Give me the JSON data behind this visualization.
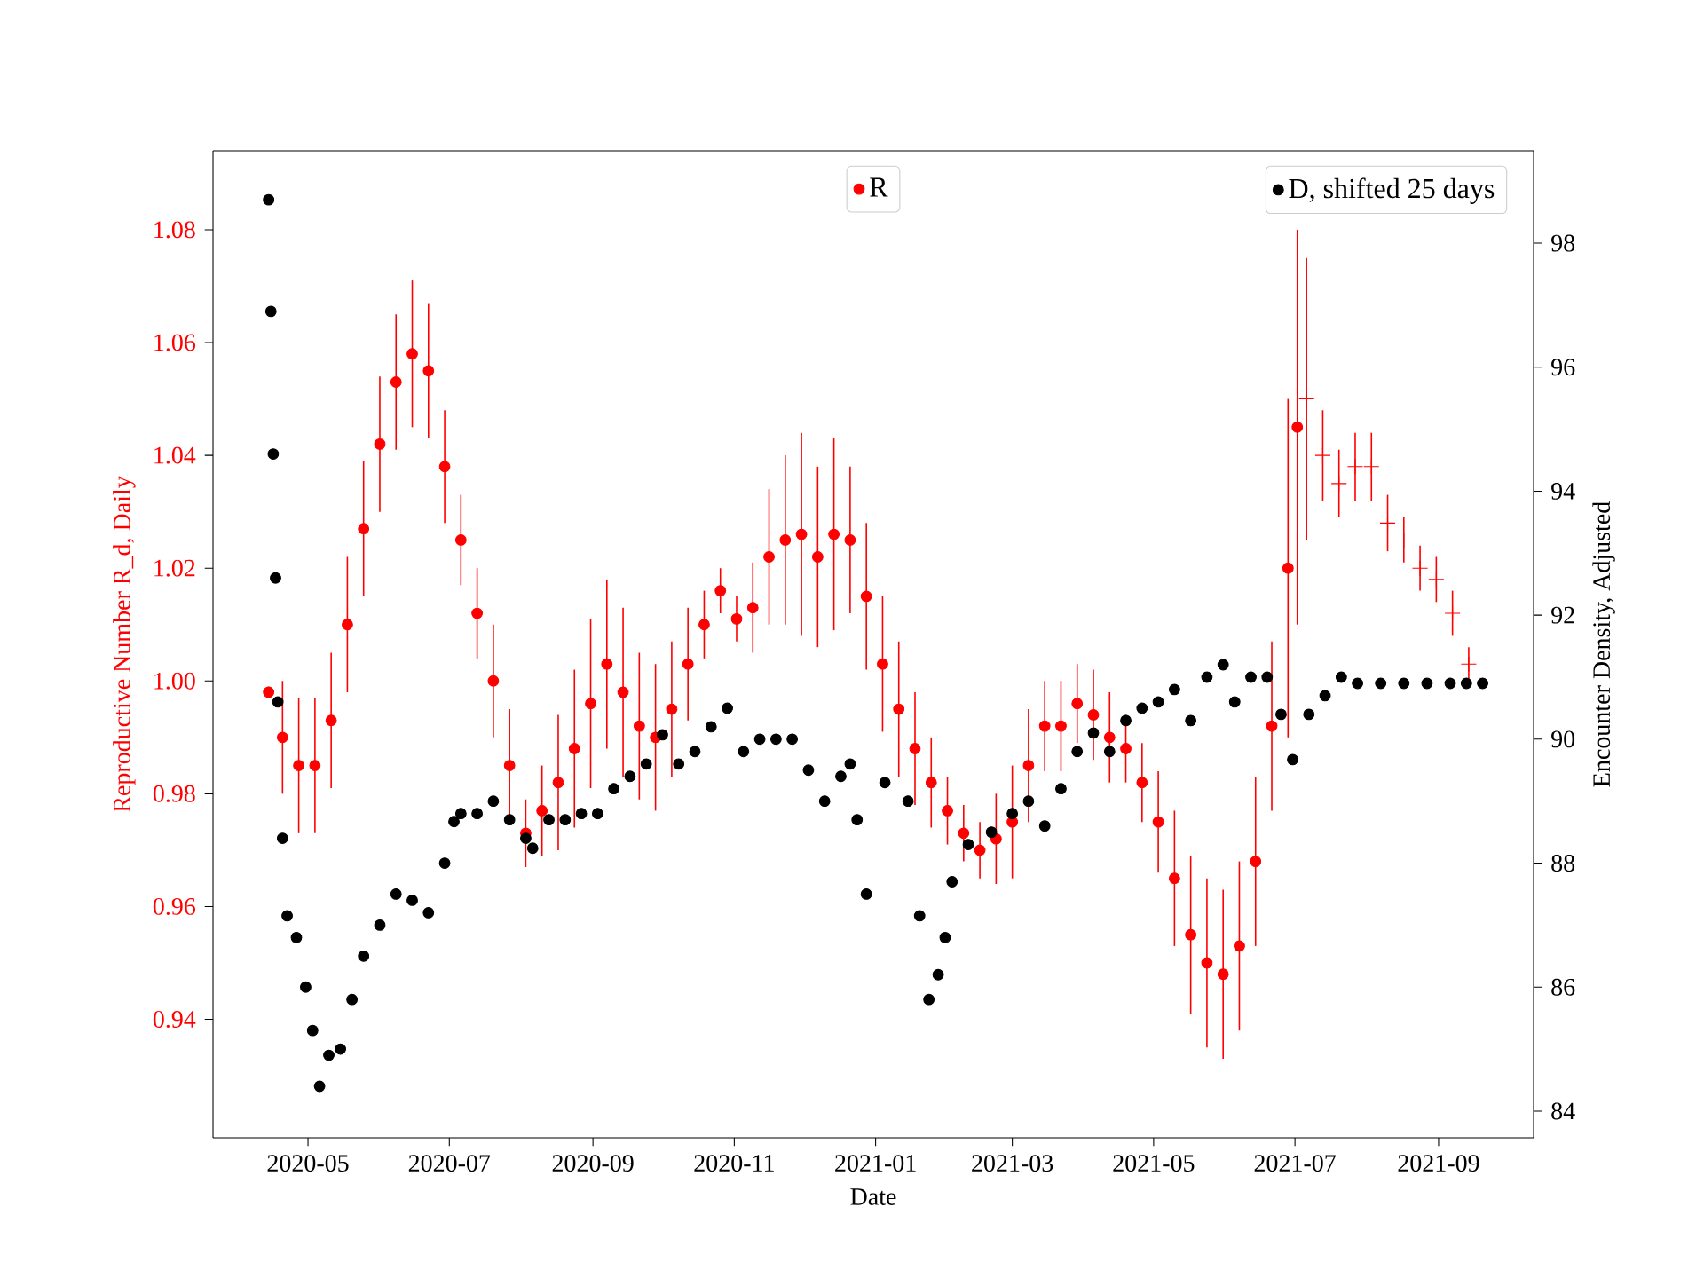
{
  "chart_data": {
    "type": "scatter",
    "xlabel": "Date",
    "ylabel": "Reproductive Number R_d, Daily",
    "y2label": "Encounter Density, Adjusted",
    "xlim": [
      "2020-03-21",
      "2021-10-12"
    ],
    "xticks": [
      {
        "value": "2020-05-01",
        "label": "2020-05"
      },
      {
        "value": "2020-07-01",
        "label": "2020-07"
      },
      {
        "value": "2020-09-01",
        "label": "2020-09"
      },
      {
        "value": "2020-11-01",
        "label": "2020-11"
      },
      {
        "value": "2021-01-01",
        "label": "2021-01"
      },
      {
        "value": "2021-03-01",
        "label": "2021-03"
      },
      {
        "value": "2021-05-01",
        "label": "2021-05"
      },
      {
        "value": "2021-07-01",
        "label": "2021-07"
      },
      {
        "value": "2021-09-01",
        "label": "2021-09"
      }
    ],
    "ylim": [
      0.919,
      1.094
    ],
    "yticks": [
      0.94,
      0.96,
      0.98,
      {
        "value": 1.0,
        "label": "1.00"
      },
      1.02,
      1.04,
      1.06,
      1.08
    ],
    "y2lim": [
      83.57,
      99.49
    ],
    "y2ticks": [
      84,
      86,
      88,
      90,
      92,
      94,
      96,
      98
    ],
    "legend": "top right",
    "grid": false,
    "series": [
      {
        "name": "R",
        "color": "#ff0000",
        "marker": "circle",
        "x": [
          "2020-04-14",
          "2020-04-20",
          "2020-04-27",
          "2020-05-04",
          "2020-05-11",
          "2020-05-18",
          "2020-05-25",
          "2020-06-01",
          "2020-06-08",
          "2020-06-15",
          "2020-06-22",
          "2020-06-29",
          "2020-07-06",
          "2020-07-13",
          "2020-07-20",
          "2020-07-27",
          "2020-08-03",
          "2020-08-10",
          "2020-08-17",
          "2020-08-24",
          "2020-08-31",
          "2020-09-07",
          "2020-09-14",
          "2020-09-21",
          "2020-09-28",
          "2020-10-05",
          "2020-10-12",
          "2020-10-19",
          "2020-10-26",
          "2020-11-02",
          "2020-11-09",
          "2020-11-16",
          "2020-11-23",
          "2020-11-30",
          "2020-12-07",
          "2020-12-14",
          "2020-12-21",
          "2020-12-28",
          "2021-01-04",
          "2021-01-11",
          "2021-01-18",
          "2021-01-25",
          "2021-02-01",
          "2021-02-08",
          "2021-02-15",
          "2021-02-22",
          "2021-03-01",
          "2021-03-08",
          "2021-03-15",
          "2021-03-22",
          "2021-03-29",
          "2021-04-05",
          "2021-04-12",
          "2021-04-19",
          "2021-04-26",
          "2021-05-03",
          "2021-05-10",
          "2021-05-17",
          "2021-05-24",
          "2021-05-31",
          "2021-06-07",
          "2021-06-14",
          "2021-06-21",
          "2021-06-28",
          "2021-07-02"
        ],
        "values": [
          0.998,
          0.99,
          0.985,
          0.985,
          0.993,
          1.01,
          1.027,
          1.042,
          1.053,
          1.058,
          1.055,
          1.038,
          1.025,
          1.012,
          1.0,
          0.985,
          0.973,
          0.977,
          0.982,
          0.988,
          0.996,
          1.003,
          0.998,
          0.992,
          0.99,
          0.995,
          1.003,
          1.01,
          1.016,
          1.011,
          1.013,
          1.022,
          1.025,
          1.026,
          1.022,
          1.026,
          1.025,
          1.015,
          1.003,
          0.995,
          0.988,
          0.982,
          0.977,
          0.973,
          0.97,
          0.972,
          0.975,
          0.985,
          0.992,
          0.992,
          0.996,
          0.994,
          0.99,
          0.988,
          0.982,
          0.975,
          0.965,
          0.955,
          0.95,
          0.948,
          0.953,
          0.968,
          0.992,
          1.02,
          1.045
        ],
        "errors": [
          0.001,
          0.01,
          0.012,
          0.012,
          0.012,
          0.012,
          0.012,
          0.012,
          0.012,
          0.013,
          0.012,
          0.01,
          0.008,
          0.008,
          0.01,
          0.01,
          0.006,
          0.008,
          0.012,
          0.014,
          0.015,
          0.015,
          0.015,
          0.013,
          0.013,
          0.012,
          0.01,
          0.006,
          0.004,
          0.004,
          0.008,
          0.012,
          0.015,
          0.018,
          0.016,
          0.017,
          0.013,
          0.013,
          0.012,
          0.012,
          0.01,
          0.008,
          0.006,
          0.005,
          0.005,
          0.008,
          0.01,
          0.01,
          0.008,
          0.008,
          0.007,
          0.008,
          0.008,
          0.006,
          0.007,
          0.009,
          0.012,
          0.014,
          0.015,
          0.015,
          0.015,
          0.015,
          0.015,
          0.03,
          0.035
        ]
      },
      {
        "color": "#ff0000",
        "marker": "cross",
        "x": [
          "2021-07-06",
          "2021-07-13",
          "2021-07-20",
          "2021-07-27",
          "2021-08-03",
          "2021-08-10",
          "2021-08-17",
          "2021-08-24",
          "2021-08-31",
          "2021-09-07",
          "2021-09-14"
        ],
        "values": [
          1.05,
          1.04,
          1.035,
          1.038,
          1.038,
          1.028,
          1.025,
          1.02,
          1.018,
          1.012,
          1.003
        ],
        "errors": [
          0.025,
          0.008,
          0.006,
          0.006,
          0.006,
          0.005,
          0.004,
          0.004,
          0.004,
          0.004,
          0.003
        ]
      },
      {
        "name": "D, shifted 25 days",
        "color": "#000000",
        "axis": "y2",
        "marker": "circle",
        "x": [
          "2020-04-14",
          "2020-04-15",
          "2020-04-16",
          "2020-04-17",
          "2020-04-18",
          "2020-04-20",
          "2020-04-22",
          "2020-04-26",
          "2020-04-30",
          "2020-05-03",
          "2020-05-06",
          "2020-05-10",
          "2020-05-15",
          "2020-05-20",
          "2020-05-25",
          "2020-06-01",
          "2020-06-08",
          "2020-06-15",
          "2020-06-22",
          "2020-06-29",
          "2020-07-03",
          "2020-07-06",
          "2020-07-13",
          "2020-07-20",
          "2020-07-27",
          "2020-08-03",
          "2020-08-06",
          "2020-08-13",
          "2020-08-20",
          "2020-08-27",
          "2020-09-03",
          "2020-09-10",
          "2020-09-17",
          "2020-09-24",
          "2020-10-01",
          "2020-10-08",
          "2020-10-15",
          "2020-10-22",
          "2020-10-29",
          "2020-11-05",
          "2020-11-12",
          "2020-11-19",
          "2020-11-26",
          "2020-12-03",
          "2020-12-10",
          "2020-12-17",
          "2020-12-21",
          "2020-12-24",
          "2020-12-28",
          "2021-01-05",
          "2021-01-15",
          "2021-01-20",
          "2021-01-24",
          "2021-01-28",
          "2021-01-31",
          "2021-02-03",
          "2021-02-10",
          "2021-02-20",
          "2021-03-01",
          "2021-03-08",
          "2021-03-15",
          "2021-03-22",
          "2021-03-29",
          "2021-04-05",
          "2021-04-12",
          "2021-04-19",
          "2021-04-26",
          "2021-05-03",
          "2021-05-10",
          "2021-05-17",
          "2021-05-24",
          "2021-05-31",
          "2021-06-05",
          "2021-06-12",
          "2021-06-19",
          "2021-06-25",
          "2021-06-30",
          "2021-07-07",
          "2021-07-14",
          "2021-07-21",
          "2021-07-28",
          "2021-08-07",
          "2021-08-17",
          "2021-08-27",
          "2021-09-06",
          "2021-09-13",
          "2021-09-20"
        ],
        "values": [
          98.7,
          96.9,
          94.6,
          92.6,
          90.6,
          88.4,
          87.15,
          86.8,
          86.0,
          85.3,
          84.4,
          84.9,
          85.0,
          85.8,
          86.5,
          87.0,
          87.5,
          87.4,
          87.2,
          88.0,
          88.67,
          88.8,
          88.8,
          89.0,
          88.7,
          88.4,
          88.24,
          88.7,
          88.7,
          88.8,
          88.8,
          89.2,
          89.4,
          89.6,
          90.07,
          89.6,
          89.8,
          90.2,
          90.5,
          89.8,
          90.0,
          90.0,
          90.0,
          89.5,
          89.0,
          89.4,
          89.6,
          88.7,
          87.5,
          89.3,
          89.0,
          87.15,
          85.8,
          86.2,
          86.8,
          87.7,
          88.3,
          88.5,
          88.8,
          89.0,
          88.6,
          89.2,
          89.8,
          90.1,
          89.8,
          90.3,
          90.5,
          90.6,
          90.8,
          90.3,
          91.0,
          91.2,
          90.6,
          91.0,
          91.0,
          90.4,
          89.67,
          90.4,
          90.7,
          91.0,
          90.9,
          90.9,
          90.9,
          90.9,
          90.9,
          90.9,
          90.9
        ]
      }
    ]
  }
}
